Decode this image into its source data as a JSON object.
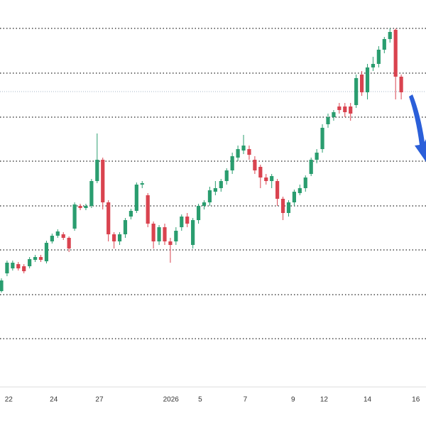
{
  "chart_data": {
    "type": "candlestick",
    "up_color": "#2a9d6f",
    "down_color": "#d9434f",
    "open": [
      135,
      160,
      167,
      173,
      170,
      170,
      179,
      183,
      177,
      205,
      213,
      215,
      210,
      223,
      255,
      252,
      255,
      290,
      320,
      260,
      215,
      205,
      215,
      240,
      248,
      285,
      270,
      230,
      205,
      225,
      205,
      205,
      225,
      240,
      200,
      235,
      255,
      260,
      275,
      280,
      290,
      305,
      323,
      333,
      335,
      320,
      310,
      295,
      290,
      290,
      265,
      245,
      260,
      273,
      280,
      300,
      320,
      335,
      370,
      380,
      395,
      395,
      395,
      397,
      440,
      415,
      450,
      455,
      475,
      490,
      503,
      437
    ],
    "high": [
      153,
      178,
      178,
      176,
      173,
      183,
      186,
      186,
      206,
      216,
      222,
      218,
      212,
      260,
      258,
      258,
      293,
      357,
      323,
      263,
      218,
      218,
      238,
      251,
      288,
      290,
      273,
      233,
      228,
      230,
      210,
      225,
      243,
      245,
      238,
      258,
      263,
      282,
      290,
      293,
      308,
      330,
      340,
      355,
      340,
      325,
      313,
      300,
      300,
      293,
      268,
      263,
      278,
      285,
      298,
      323,
      335,
      370,
      385,
      390,
      400,
      400,
      400,
      440,
      445,
      455,
      465,
      480,
      493,
      505,
      505,
      440
    ],
    "low": [
      133,
      156,
      164,
      164,
      160,
      167,
      176,
      176,
      174,
      202,
      210,
      207,
      190,
      220,
      249,
      249,
      252,
      287,
      250,
      205,
      195,
      200,
      210,
      236,
      245,
      280,
      225,
      195,
      200,
      200,
      175,
      200,
      220,
      225,
      195,
      230,
      250,
      255,
      270,
      275,
      285,
      300,
      318,
      328,
      320,
      300,
      280,
      285,
      280,
      255,
      235,
      240,
      255,
      270,
      275,
      297,
      315,
      330,
      365,
      375,
      385,
      380,
      375,
      393,
      410,
      405,
      445,
      450,
      470,
      485,
      405,
      405
    ],
    "close": [
      150,
      175,
      175,
      167,
      163,
      180,
      183,
      179,
      203,
      213,
      219,
      210,
      195,
      257,
      252,
      255,
      290,
      320,
      260,
      215,
      205,
      215,
      235,
      248,
      285,
      287,
      230,
      205,
      225,
      205,
      200,
      220,
      240,
      230,
      235,
      255,
      260,
      277,
      280,
      290,
      305,
      325,
      335,
      340,
      327,
      305,
      295,
      290,
      297,
      265,
      245,
      260,
      275,
      280,
      295,
      320,
      330,
      365,
      380,
      387,
      390,
      387,
      385,
      435,
      415,
      450,
      455,
      475,
      490,
      500,
      437,
      415
    ],
    "xlim": [
      -0.25,
      75.4
    ],
    "ylim": [
      0,
      545
    ],
    "xticks": [
      {
        "value": 1.3,
        "label": "22"
      },
      {
        "value": 9.3,
        "label": "24"
      },
      {
        "value": 17.4,
        "label": "27"
      },
      {
        "value": 30.1,
        "label": "2026"
      },
      {
        "value": 35.3,
        "label": "5"
      },
      {
        "value": 43.3,
        "label": "7"
      },
      {
        "value": 51.8,
        "label": "9"
      },
      {
        "value": 57.3,
        "label": "12"
      },
      {
        "value": 65,
        "label": "14"
      },
      {
        "value": 73.6,
        "label": "16"
      }
    ],
    "ygrid": [
      505,
      442,
      380,
      318,
      255,
      193,
      130,
      68
    ],
    "price_line": 416
  }
}
